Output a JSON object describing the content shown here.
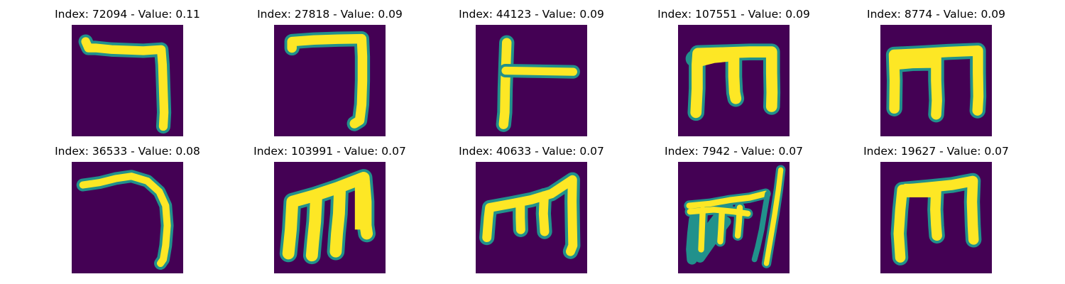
{
  "colors": {
    "background": "#440154",
    "foreground": "#fde725",
    "edge": "#21918c"
  },
  "panels": [
    {
      "index": "72094",
      "value": "0.11",
      "title": "Index: 72094 - Value: 0.11",
      "glyph": "top-bar-right-hook"
    },
    {
      "index": "27818",
      "value": "0.09",
      "title": "Index: 27818 - Value: 0.09",
      "glyph": "top-bar-right-hook"
    },
    {
      "index": "44123",
      "value": "0.09",
      "title": "Index: 44123 - Value: 0.09",
      "glyph": "vertical-with-right-branch"
    },
    {
      "index": "107551",
      "value": "0.09",
      "title": "Index: 107551 - Value: 0.09",
      "glyph": "three-legged-m"
    },
    {
      "index": "8774",
      "value": "0.09",
      "title": "Index: 8774 - Value: 0.09",
      "glyph": "three-legged-m"
    },
    {
      "index": "36533",
      "value": "0.08",
      "title": "Index: 36533 - Value: 0.08",
      "glyph": "curved-hook"
    },
    {
      "index": "103991",
      "value": "0.07",
      "title": "Index: 103991 - Value: 0.07",
      "glyph": "three-legged-m-slanted"
    },
    {
      "index": "40633",
      "value": "0.07",
      "title": "Index: 40633 - Value: 0.07",
      "glyph": "short-m-tall-right"
    },
    {
      "index": "7942",
      "value": "0.07",
      "title": "Index: 7942 - Value: 0.07",
      "glyph": "scribbled-m-with-stroke"
    },
    {
      "index": "19627",
      "value": "0.07",
      "title": "Index: 19627 - Value: 0.07",
      "glyph": "three-legged-m"
    }
  ]
}
